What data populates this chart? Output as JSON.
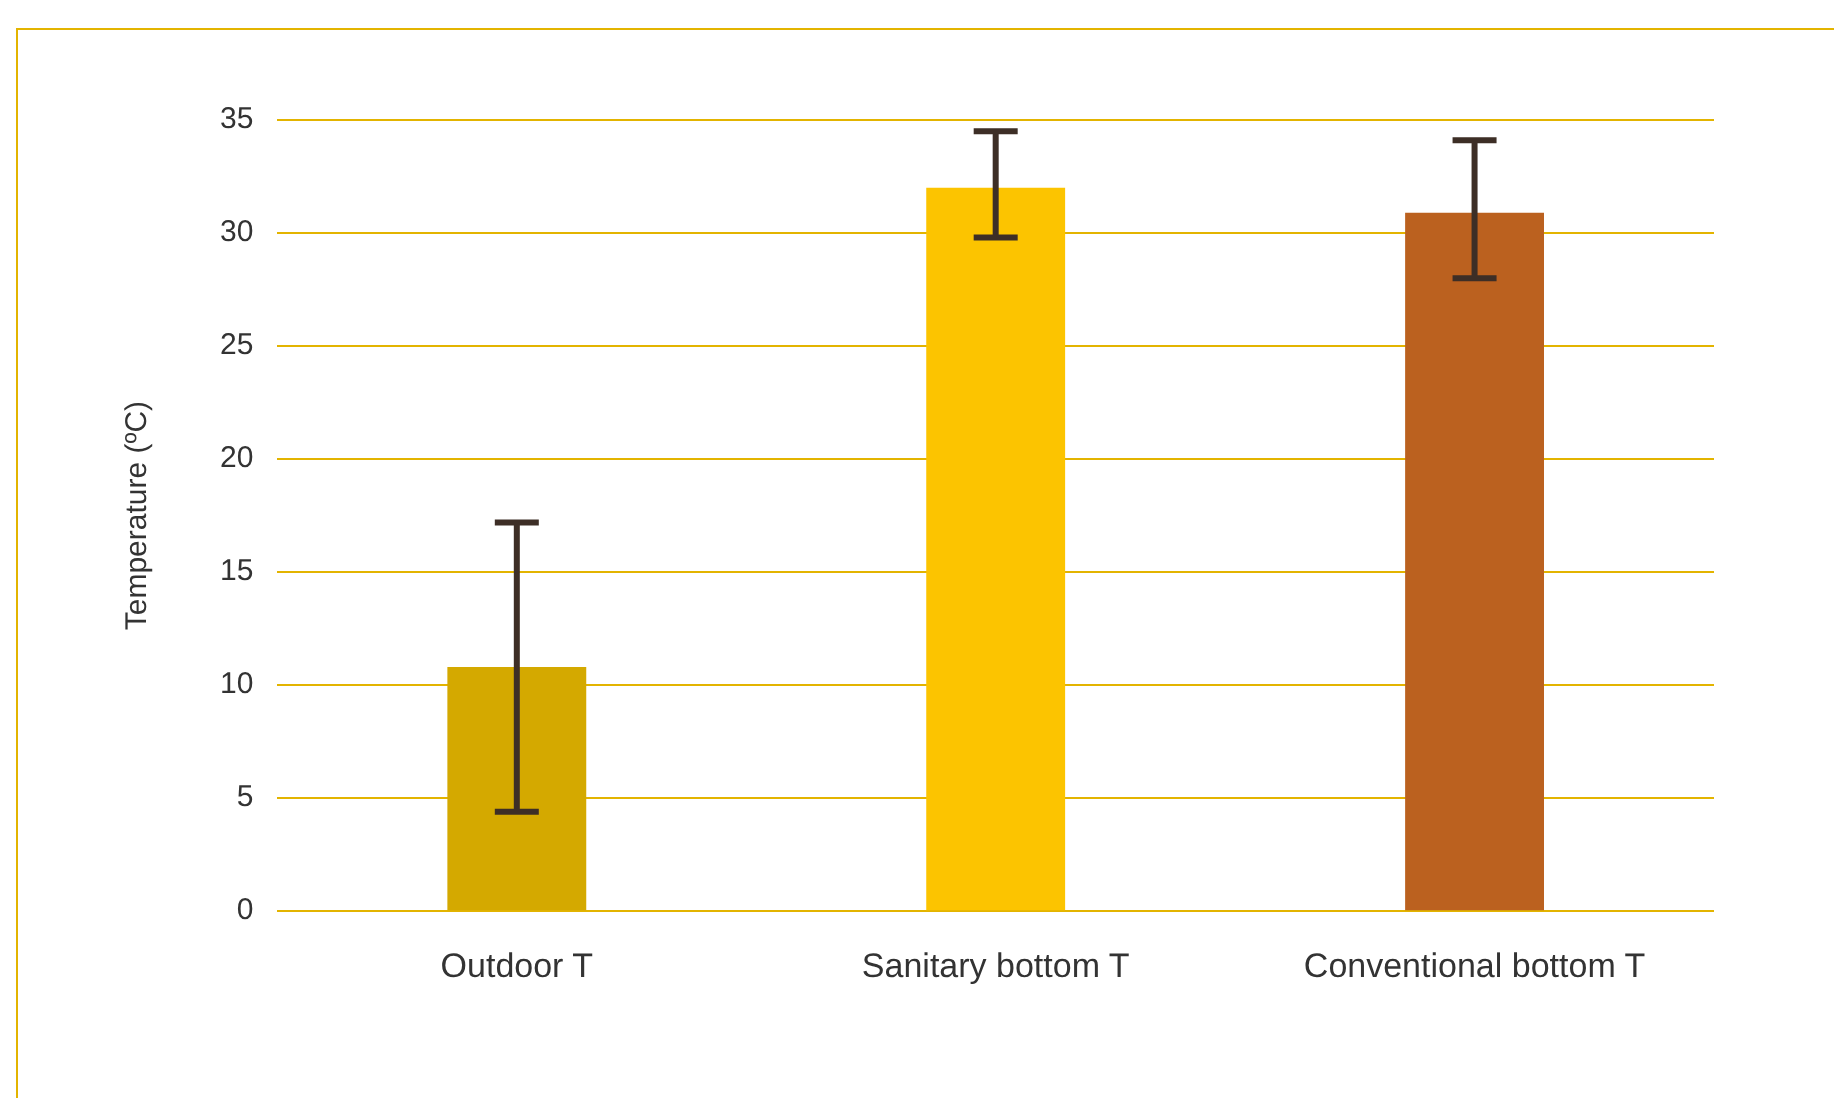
{
  "chart_data": {
    "type": "bar",
    "ylabel": "Temperature (ºC)",
    "categories": [
      "Outdoor T",
      "Sanitary bottom T",
      "Conventional bottom T"
    ],
    "values": [
      10.8,
      32,
      30.9
    ],
    "colors": [
      "#d4a900",
      "#fcc400",
      "#bb611f"
    ],
    "errors": [
      [
        4.4,
        17.2
      ],
      [
        29.8,
        34.5
      ],
      [
        28,
        34.1
      ]
    ],
    "ylim": [
      0,
      35
    ],
    "yticks": [
      0,
      5,
      10,
      15,
      20,
      25,
      30,
      35
    ],
    "grid": "y",
    "legend": false
  }
}
